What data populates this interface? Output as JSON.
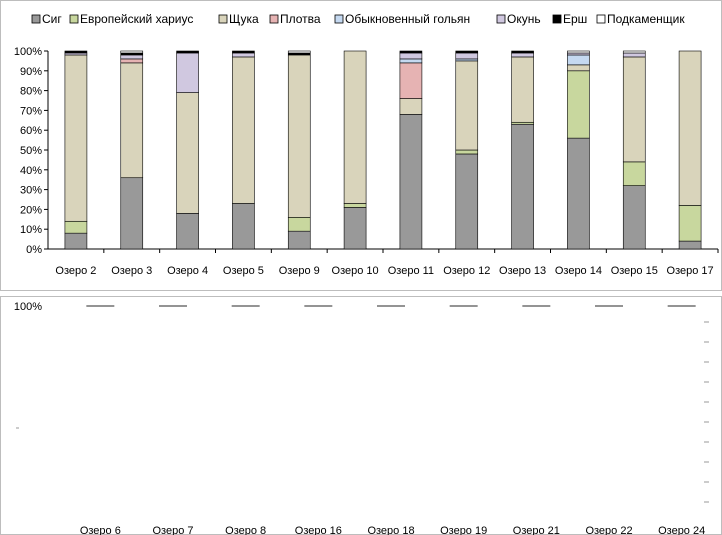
{
  "chart_data": [
    {
      "type": "bar",
      "stacked": true,
      "legend_position": "top",
      "grid": false,
      "ylim": [
        0,
        100
      ],
      "yticks": [
        "0%",
        "10%",
        "20%",
        "30%",
        "40%",
        "50%",
        "60%",
        "70%",
        "80%",
        "90%",
        "100%"
      ],
      "categories": [
        "Озеро 2",
        "Озеро 3",
        "Озеро 4",
        "Озеро 5",
        "Озеро 9",
        "Озеро 10",
        "Озеро 11",
        "Озеро 12",
        "Озеро 13",
        "Озеро 14",
        "Озеро 15",
        "Озеро 17"
      ],
      "series": [
        {
          "name": "Сиг",
          "color": "#999999",
          "values": [
            8,
            36,
            18,
            23,
            9,
            21,
            68,
            48,
            63,
            56,
            32,
            4
          ]
        },
        {
          "name": "Европейский хариус",
          "color": "#c8d79e",
          "values": [
            6,
            0,
            0,
            0,
            7,
            2,
            0,
            2,
            1,
            34,
            12,
            18
          ]
        },
        {
          "name": "Щука",
          "color": "#d9d4bb",
          "values": [
            84,
            58,
            61,
            74,
            82,
            77,
            8,
            45,
            33,
            3,
            53,
            78
          ]
        },
        {
          "name": "Плотва",
          "color": "#e6b3b3",
          "values": [
            0,
            2,
            0,
            0,
            0,
            0,
            18,
            0,
            0,
            0,
            0,
            0
          ]
        },
        {
          "name": "Обыкновенный гольян",
          "color": "#c5d9f1",
          "values": [
            0,
            0,
            0,
            0,
            0,
            0,
            2,
            1,
            0,
            5,
            0,
            0
          ]
        },
        {
          "name": "Окунь",
          "color": "#d0c8e0",
          "values": [
            1,
            2,
            20,
            2,
            0,
            0,
            3,
            3,
            2,
            1,
            2,
            0
          ]
        },
        {
          "name": "Ерш",
          "color": "#000000",
          "values": [
            1,
            1,
            1,
            1,
            1,
            0,
            1,
            1,
            1,
            0,
            0,
            0
          ]
        },
        {
          "name": "Подкаменщик",
          "color": "#ffffff",
          "values": [
            0,
            1,
            0,
            0,
            1,
            0,
            0,
            0,
            0,
            1,
            1,
            0
          ]
        }
      ]
    },
    {
      "type": "bar",
      "stacked": true,
      "partially_visible": true,
      "ytick_visible": "100%",
      "categories": [
        "Озеро 6",
        "Озеро 7",
        "Озеро 8",
        "Озеро 16",
        "Озеро 18",
        "Озеро 19",
        "Озеро 21",
        "Озеро 22",
        "Озеро 24"
      ]
    }
  ]
}
